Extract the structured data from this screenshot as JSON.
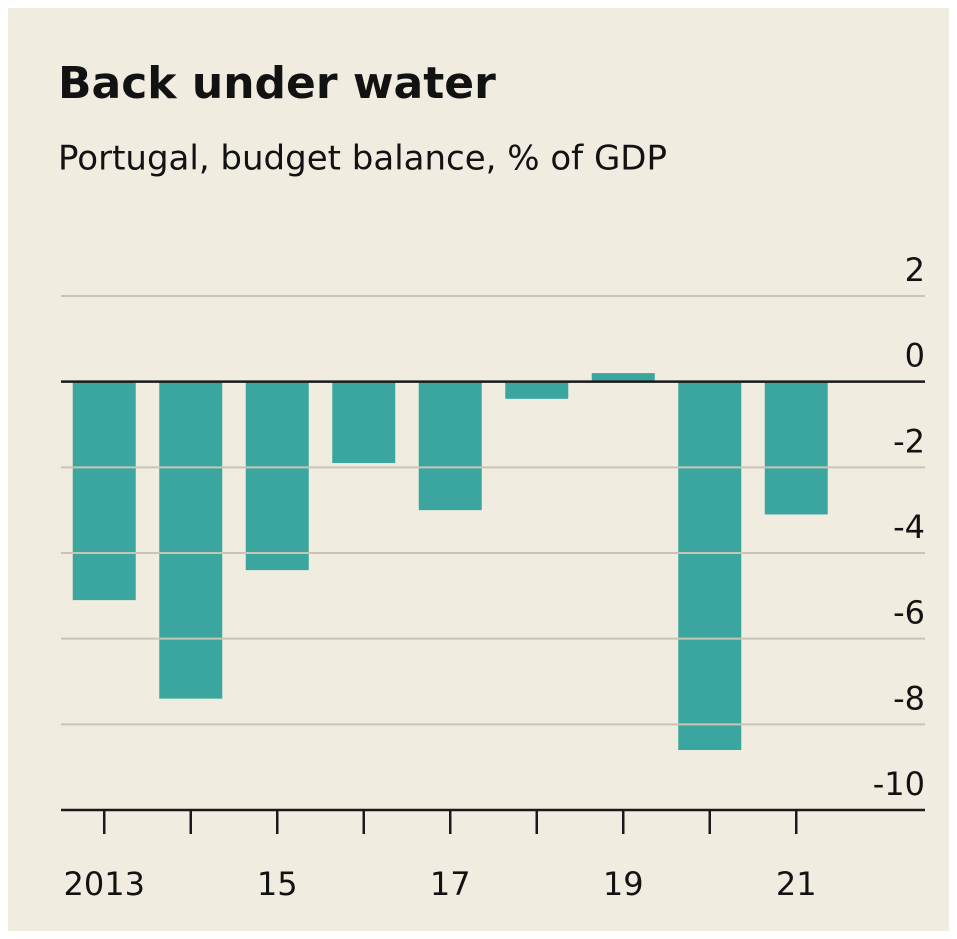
{
  "chart_data": {
    "type": "bar",
    "title": "Back under water",
    "subtitle": "Portugal, budget balance, % of GDP",
    "categories": [
      "2013",
      null,
      "15",
      null,
      "17",
      null,
      "19",
      null,
      "21"
    ],
    "values": [
      -5.1,
      -7.4,
      -4.4,
      -1.9,
      -3.0,
      -0.4,
      0.2,
      -8.6,
      -3.1
    ],
    "color": "#3ba6a0",
    "ylim": [
      -10,
      2
    ],
    "yticks": [
      2,
      0,
      -2,
      -4,
      -6,
      -8,
      -10
    ],
    "grid": true
  }
}
